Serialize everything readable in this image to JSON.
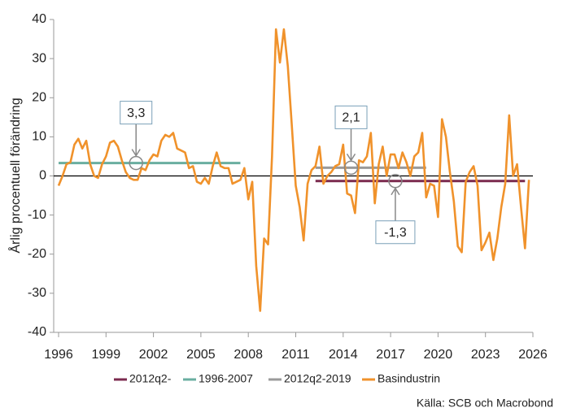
{
  "chart_data": {
    "type": "line",
    "y_label": "Årlig procentuell förändring",
    "source": "Källa: SCB och Macrobond",
    "xlim": [
      1996,
      2026
    ],
    "xticks": [
      1996,
      1999,
      2002,
      2005,
      2008,
      2011,
      2014,
      2017,
      2020,
      2023,
      2026
    ],
    "ylim": [
      -40,
      40
    ],
    "yticks": [
      -40,
      -30,
      -20,
      -10,
      0,
      10,
      20,
      30,
      40
    ],
    "series": [
      {
        "name": "2012q2-",
        "color": "#7b2a4e",
        "x": [
          2012.25,
          2025.5
        ],
        "values": [
          -1.3,
          -1.3
        ]
      },
      {
        "name": "1996-2007",
        "color": "#6aaea0",
        "x": [
          1996,
          2007.5
        ],
        "values": [
          3.3,
          3.3
        ]
      },
      {
        "name": "2012q2-2019",
        "color": "#9a9a9a",
        "x": [
          2012.25,
          2019.25
        ],
        "values": [
          2.1,
          2.1
        ]
      },
      {
        "name": "Basindustrin",
        "color": "#f0922b",
        "x": [
          1996,
          1996.25,
          1996.5,
          1996.75,
          1997,
          1997.25,
          1997.5,
          1997.75,
          1998,
          1998.25,
          1998.5,
          1998.75,
          1999,
          1999.25,
          1999.5,
          1999.75,
          2000,
          2000.25,
          2000.5,
          2000.75,
          2001,
          2001.25,
          2001.5,
          2001.75,
          2002,
          2002.25,
          2002.5,
          2002.75,
          2003,
          2003.25,
          2003.5,
          2003.75,
          2004,
          2004.25,
          2004.5,
          2004.75,
          2005,
          2005.25,
          2005.5,
          2005.75,
          2006,
          2006.25,
          2006.5,
          2006.75,
          2007,
          2007.25,
          2007.5,
          2007.75,
          2008,
          2008.25,
          2008.5,
          2008.75,
          2009,
          2009.25,
          2009.5,
          2009.75,
          2010,
          2010.25,
          2010.5,
          2010.75,
          2011,
          2011.25,
          2011.5,
          2011.75,
          2012,
          2012.25,
          2012.5,
          2012.75,
          2013,
          2013.25,
          2013.5,
          2013.75,
          2014,
          2014.25,
          2014.5,
          2014.75,
          2015,
          2015.25,
          2015.5,
          2015.75,
          2016,
          2016.25,
          2016.5,
          2016.75,
          2017,
          2017.25,
          2017.5,
          2017.75,
          2018,
          2018.25,
          2018.5,
          2018.75,
          2019,
          2019.25,
          2019.5,
          2019.75,
          2020,
          2020.25,
          2020.5,
          2020.75,
          2021,
          2021.25,
          2021.5,
          2021.75,
          2022,
          2022.25,
          2022.5,
          2022.75,
          2023,
          2023.25,
          2023.5,
          2023.75,
          2024,
          2024.25,
          2024.5,
          2024.75,
          2025,
          2025.25,
          2025.5,
          2025.75
        ],
        "values": [
          -2.5,
          0,
          3,
          3.5,
          8,
          9.5,
          7,
          9,
          3,
          0,
          -0.5,
          3,
          5,
          8.5,
          9,
          7.5,
          4,
          1,
          -0.5,
          -1,
          -1,
          2,
          1.5,
          4,
          5.5,
          5,
          9,
          10.5,
          10,
          11,
          7,
          6.5,
          6,
          2,
          2.5,
          -1.5,
          -2,
          -0.5,
          -2,
          2.5,
          6,
          2.5,
          2,
          2,
          -2,
          -1.5,
          -1,
          2,
          -6,
          -1.5,
          -23,
          -34.5,
          -16,
          -17.5,
          5,
          37.5,
          29,
          37.5,
          28,
          13,
          -2.5,
          -8,
          -16.5,
          -2,
          1.5,
          2.5,
          7.5,
          -2,
          0,
          1,
          2.5,
          3,
          8,
          -4.5,
          -5,
          -9.5,
          4,
          3.5,
          5,
          11,
          -7,
          3,
          7.5,
          0,
          5.5,
          5.5,
          2,
          6,
          3.5,
          0,
          5,
          6,
          11,
          -5.5,
          -2,
          -2.5,
          -10.5,
          14.5,
          10,
          1,
          -6.5,
          -18,
          -19.5,
          -1.5,
          1,
          2.5,
          -2.5,
          -19,
          -17,
          -14.5,
          -21.5,
          -16,
          -8,
          -2,
          15.5,
          0,
          3,
          -8,
          -18.5,
          -1
        ]
      }
    ],
    "annotations": [
      {
        "text": "3,3",
        "x": 2000.9,
        "y": 3.3
      },
      {
        "text": "2,1",
        "x": 2014.5,
        "y": 2.1
      },
      {
        "text": "-1,3",
        "x": 2017.3,
        "y": -1.3
      }
    ]
  }
}
